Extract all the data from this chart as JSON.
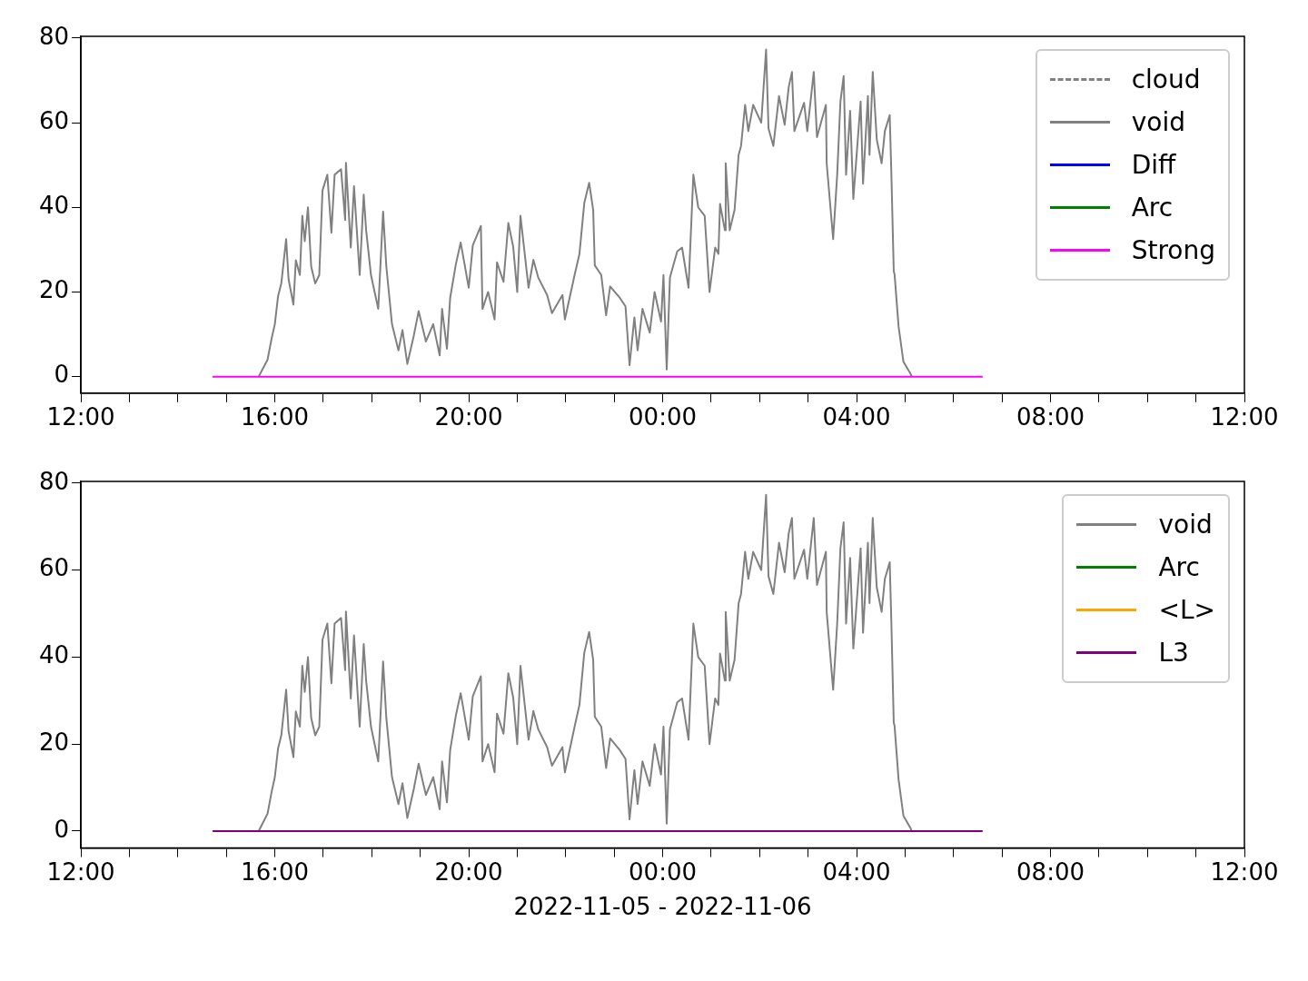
{
  "chart_data": [
    {
      "type": "line",
      "xlim": [
        "2022-11-05T12:00",
        "2022-11-06T12:00"
      ],
      "xticks": [
        {
          "value": "2022-11-05T12:00",
          "label": "12:00"
        },
        {
          "value": "2022-11-05T13:00",
          "label": null
        },
        {
          "value": "2022-11-05T14:00",
          "label": null
        },
        {
          "value": "2022-11-05T15:00",
          "label": null
        },
        {
          "value": "2022-11-05T16:00",
          "label": "16:00"
        },
        {
          "value": "2022-11-05T17:00",
          "label": null
        },
        {
          "value": "2022-11-05T18:00",
          "label": null
        },
        {
          "value": "2022-11-05T19:00",
          "label": null
        },
        {
          "value": "2022-11-05T20:00",
          "label": "20:00"
        },
        {
          "value": "2022-11-05T21:00",
          "label": null
        },
        {
          "value": "2022-11-05T22:00",
          "label": null
        },
        {
          "value": "2022-11-05T23:00",
          "label": null
        },
        {
          "value": "2022-11-06T00:00",
          "label": "00:00"
        },
        {
          "value": "2022-11-06T01:00",
          "label": null
        },
        {
          "value": "2022-11-06T02:00",
          "label": null
        },
        {
          "value": "2022-11-06T03:00",
          "label": null
        },
        {
          "value": "2022-11-06T04:00",
          "label": "04:00"
        },
        {
          "value": "2022-11-06T05:00",
          "label": null
        },
        {
          "value": "2022-11-06T06:00",
          "label": null
        },
        {
          "value": "2022-11-06T07:00",
          "label": null
        },
        {
          "value": "2022-11-06T08:00",
          "label": "08:00"
        },
        {
          "value": "2022-11-06T09:00",
          "label": null
        },
        {
          "value": "2022-11-06T10:00",
          "label": null
        },
        {
          "value": "2022-11-06T11:00",
          "label": null
        },
        {
          "value": "2022-11-06T12:00",
          "label": "12:00"
        }
      ],
      "ylim": [
        -3.9,
        80.4
      ],
      "yticks": [
        0,
        20,
        40,
        60,
        80
      ],
      "legend": "top right",
      "series": [
        {
          "name": "cloud",
          "color": "#808080",
          "line_style": "dashed"
        },
        {
          "name": "void",
          "color": "#808080",
          "x": [
            "2022-11-05T15:40",
            "2022-11-05T15:51",
            "2022-11-05T15:56",
            "2022-11-05T16:00",
            "2022-11-05T16:04",
            "2022-11-05T16:08",
            "2022-11-05T16:14",
            "2022-11-05T16:17",
            "2022-11-05T16:23",
            "2022-11-05T16:26",
            "2022-11-05T16:31",
            "2022-11-05T16:34",
            "2022-11-05T16:37",
            "2022-11-05T16:41",
            "2022-11-05T16:45",
            "2022-11-05T16:50",
            "2022-11-05T16:55",
            "2022-11-05T16:59",
            "2022-11-05T17:05",
            "2022-11-05T17:10",
            "2022-11-05T17:14",
            "2022-11-05T17:22",
            "2022-11-05T17:27",
            "2022-11-05T17:28",
            "2022-11-05T17:34",
            "2022-11-05T17:38",
            "2022-11-05T17:45",
            "2022-11-05T17:50",
            "2022-11-05T17:53",
            "2022-11-05T17:59",
            "2022-11-05T18:08",
            "2022-11-05T18:14",
            "2022-11-05T18:18",
            "2022-11-05T18:25",
            "2022-11-05T18:33",
            "2022-11-05T18:38",
            "2022-11-05T18:44",
            "2022-11-05T18:52",
            "2022-11-05T18:58",
            "2022-11-05T19:07",
            "2022-11-05T19:16",
            "2022-11-05T19:24",
            "2022-11-05T19:27",
            "2022-11-05T19:33",
            "2022-11-05T19:37",
            "2022-11-05T19:44",
            "2022-11-05T19:50",
            "2022-11-05T20:00",
            "2022-11-05T20:05",
            "2022-11-05T20:15",
            "2022-11-05T20:17",
            "2022-11-05T20:24",
            "2022-11-05T20:32",
            "2022-11-05T20:35",
            "2022-11-05T20:43",
            "2022-11-05T20:49",
            "2022-11-05T20:55",
            "2022-11-05T21:00",
            "2022-11-05T21:04",
            "2022-11-05T21:14",
            "2022-11-05T21:20",
            "2022-11-05T21:26",
            "2022-11-05T21:37",
            "2022-11-05T21:43",
            "2022-11-05T21:56",
            "2022-11-05T21:59",
            "2022-11-05T22:11",
            "2022-11-05T22:17",
            "2022-11-05T22:23",
            "2022-11-05T22:29",
            "2022-11-05T22:34",
            "2022-11-05T22:36",
            "2022-11-05T22:44",
            "2022-11-05T22:50",
            "2022-11-05T22:55",
            "2022-11-05T23:07",
            "2022-11-05T23:14",
            "2022-11-05T23:19",
            "2022-11-05T23:25",
            "2022-11-05T23:29",
            "2022-11-05T23:35",
            "2022-11-05T23:44",
            "2022-11-05T23:50",
            "2022-11-05T23:58",
            "2022-11-06T00:01",
            "2022-11-06T00:05",
            "2022-11-06T00:09",
            "2022-11-06T00:18",
            "2022-11-06T00:24",
            "2022-11-06T00:32",
            "2022-11-06T00:38",
            "2022-11-06T00:44",
            "2022-11-06T00:52",
            "2022-11-06T00:58",
            "2022-11-06T01:05",
            "2022-11-06T01:09",
            "2022-11-06T01:11",
            "2022-11-06T01:17",
            "2022-11-06T01:18",
            "2022-11-06T01:23",
            "2022-11-06T01:29",
            "2022-11-06T01:34",
            "2022-11-06T01:37",
            "2022-11-06T01:42",
            "2022-11-06T01:46",
            "2022-11-06T01:52",
            "2022-11-06T02:02",
            "2022-11-06T02:08",
            "2022-11-06T02:11",
            "2022-11-06T02:17",
            "2022-11-06T02:24",
            "2022-11-06T02:31",
            "2022-11-06T02:36",
            "2022-11-06T02:40",
            "2022-11-06T02:43",
            "2022-11-06T02:55",
            "2022-11-06T02:59",
            "2022-11-06T03:07",
            "2022-11-06T03:11",
            "2022-11-06T03:22",
            "2022-11-06T03:23",
            "2022-11-06T03:31",
            "2022-11-06T03:36",
            "2022-11-06T03:40",
            "2022-11-06T03:44",
            "2022-11-06T03:47",
            "2022-11-06T03:52",
            "2022-11-06T03:56",
            "2022-11-06T04:05",
            "2022-11-06T04:08",
            "2022-11-06T04:14",
            "2022-11-06T04:16",
            "2022-11-06T04:20",
            "2022-11-06T04:25",
            "2022-11-06T04:31",
            "2022-11-06T04:35",
            "2022-11-06T04:41",
            "2022-11-06T04:43",
            "2022-11-06T04:46",
            "2022-11-06T04:47",
            "2022-11-06T04:52",
            "2022-11-06T04:58",
            "2022-11-06T05:07",
            "2022-11-06T05:08"
          ],
          "values": [
            0,
            4,
            9,
            12.4,
            19,
            22,
            32.5,
            23,
            17,
            27.5,
            24,
            38,
            32,
            40,
            26,
            22,
            24,
            44,
            47.7,
            34,
            47.7,
            49,
            37,
            50.5,
            30.5,
            45,
            24,
            43,
            34.6,
            24,
            16,
            39,
            26,
            12.4,
            6.2,
            11,
            3,
            9.7,
            15.5,
            8.3,
            12.4,
            5,
            16,
            6.6,
            18.6,
            26.5,
            31.7,
            21,
            31,
            35.6,
            16,
            20,
            13.5,
            27,
            22.4,
            36.3,
            30.7,
            20,
            38,
            21,
            27.6,
            23.4,
            19.3,
            15,
            19.3,
            13.5,
            24,
            29,
            41,
            45.8,
            39.4,
            26.3,
            24,
            14.5,
            21.3,
            18.6,
            16.6,
            2.7,
            14,
            6.2,
            16,
            10.4,
            20,
            13,
            24,
            1.7,
            23.4,
            29.6,
            30.5,
            21,
            47.7,
            40,
            38,
            20,
            30.5,
            29,
            40.8,
            34.6,
            50.4,
            34.6,
            39.4,
            52.4,
            54.5,
            64.2,
            58,
            64.2,
            60,
            77.3,
            58.6,
            54.5,
            66.3,
            59.5,
            68.4,
            72,
            58,
            64.7,
            58,
            72,
            56.6,
            64.2,
            50.4,
            32.5,
            47.7,
            65,
            71,
            47.7,
            62.8,
            42,
            65,
            45.6,
            66.3,
            52.4,
            72,
            56,
            50.4,
            58,
            61.8,
            48.3,
            24.9,
            24.2,
            11.8,
            3.5,
            0.6,
            0
          ]
        },
        {
          "name": "Diff",
          "color": "#0000ff"
        },
        {
          "name": "Arc",
          "color": "#008000"
        },
        {
          "name": "Strong",
          "color": "#ff00ff",
          "x": [
            "2022-11-05T14:43",
            "2022-11-06T06:36"
          ],
          "values": [
            0,
            0
          ]
        }
      ]
    },
    {
      "type": "line",
      "xlabel": "2022-11-05 - 2022-11-06",
      "xlim": [
        "2022-11-05T12:00",
        "2022-11-06T12:00"
      ],
      "xticks": [
        {
          "value": "2022-11-05T12:00",
          "label": "12:00"
        },
        {
          "value": "2022-11-05T13:00",
          "label": null
        },
        {
          "value": "2022-11-05T14:00",
          "label": null
        },
        {
          "value": "2022-11-05T15:00",
          "label": null
        },
        {
          "value": "2022-11-05T16:00",
          "label": "16:00"
        },
        {
          "value": "2022-11-05T17:00",
          "label": null
        },
        {
          "value": "2022-11-05T18:00",
          "label": null
        },
        {
          "value": "2022-11-05T19:00",
          "label": null
        },
        {
          "value": "2022-11-05T20:00",
          "label": "20:00"
        },
        {
          "value": "2022-11-05T21:00",
          "label": null
        },
        {
          "value": "2022-11-05T22:00",
          "label": null
        },
        {
          "value": "2022-11-05T23:00",
          "label": null
        },
        {
          "value": "2022-11-06T00:00",
          "label": "00:00"
        },
        {
          "value": "2022-11-06T01:00",
          "label": null
        },
        {
          "value": "2022-11-06T02:00",
          "label": null
        },
        {
          "value": "2022-11-06T03:00",
          "label": null
        },
        {
          "value": "2022-11-06T04:00",
          "label": "04:00"
        },
        {
          "value": "2022-11-06T05:00",
          "label": null
        },
        {
          "value": "2022-11-06T06:00",
          "label": null
        },
        {
          "value": "2022-11-06T07:00",
          "label": null
        },
        {
          "value": "2022-11-06T08:00",
          "label": "08:00"
        },
        {
          "value": "2022-11-06T09:00",
          "label": null
        },
        {
          "value": "2022-11-06T10:00",
          "label": null
        },
        {
          "value": "2022-11-06T11:00",
          "label": null
        },
        {
          "value": "2022-11-06T12:00",
          "label": "12:00"
        }
      ],
      "ylim": [
        -3.9,
        80.4
      ],
      "yticks": [
        0,
        20,
        40,
        60,
        80
      ],
      "legend": "top right",
      "series": [
        {
          "name": "void",
          "color": "#808080",
          "x": [
            "2022-11-05T15:40",
            "2022-11-05T15:51",
            "2022-11-05T15:56",
            "2022-11-05T16:00",
            "2022-11-05T16:04",
            "2022-11-05T16:08",
            "2022-11-05T16:14",
            "2022-11-05T16:17",
            "2022-11-05T16:23",
            "2022-11-05T16:26",
            "2022-11-05T16:31",
            "2022-11-05T16:34",
            "2022-11-05T16:37",
            "2022-11-05T16:41",
            "2022-11-05T16:45",
            "2022-11-05T16:50",
            "2022-11-05T16:55",
            "2022-11-05T16:59",
            "2022-11-05T17:05",
            "2022-11-05T17:10",
            "2022-11-05T17:14",
            "2022-11-05T17:22",
            "2022-11-05T17:27",
            "2022-11-05T17:28",
            "2022-11-05T17:34",
            "2022-11-05T17:38",
            "2022-11-05T17:45",
            "2022-11-05T17:50",
            "2022-11-05T17:53",
            "2022-11-05T17:59",
            "2022-11-05T18:08",
            "2022-11-05T18:14",
            "2022-11-05T18:18",
            "2022-11-05T18:25",
            "2022-11-05T18:33",
            "2022-11-05T18:38",
            "2022-11-05T18:44",
            "2022-11-05T18:52",
            "2022-11-05T18:58",
            "2022-11-05T19:07",
            "2022-11-05T19:16",
            "2022-11-05T19:24",
            "2022-11-05T19:27",
            "2022-11-05T19:33",
            "2022-11-05T19:37",
            "2022-11-05T19:44",
            "2022-11-05T19:50",
            "2022-11-05T20:00",
            "2022-11-05T20:05",
            "2022-11-05T20:15",
            "2022-11-05T20:17",
            "2022-11-05T20:24",
            "2022-11-05T20:32",
            "2022-11-05T20:35",
            "2022-11-05T20:43",
            "2022-11-05T20:49",
            "2022-11-05T20:55",
            "2022-11-05T21:00",
            "2022-11-05T21:04",
            "2022-11-05T21:14",
            "2022-11-05T21:20",
            "2022-11-05T21:26",
            "2022-11-05T21:37",
            "2022-11-05T21:43",
            "2022-11-05T21:56",
            "2022-11-05T21:59",
            "2022-11-05T22:11",
            "2022-11-05T22:17",
            "2022-11-05T22:23",
            "2022-11-05T22:29",
            "2022-11-05T22:34",
            "2022-11-05T22:36",
            "2022-11-05T22:44",
            "2022-11-05T22:50",
            "2022-11-05T22:55",
            "2022-11-05T23:07",
            "2022-11-05T23:14",
            "2022-11-05T23:19",
            "2022-11-05T23:25",
            "2022-11-05T23:29",
            "2022-11-05T23:35",
            "2022-11-05T23:44",
            "2022-11-05T23:50",
            "2022-11-05T23:58",
            "2022-11-06T00:01",
            "2022-11-06T00:05",
            "2022-11-06T00:09",
            "2022-11-06T00:18",
            "2022-11-06T00:24",
            "2022-11-06T00:32",
            "2022-11-06T00:38",
            "2022-11-06T00:44",
            "2022-11-06T00:52",
            "2022-11-06T00:58",
            "2022-11-06T01:05",
            "2022-11-06T01:09",
            "2022-11-06T01:11",
            "2022-11-06T01:17",
            "2022-11-06T01:18",
            "2022-11-06T01:23",
            "2022-11-06T01:29",
            "2022-11-06T01:34",
            "2022-11-06T01:37",
            "2022-11-06T01:42",
            "2022-11-06T01:46",
            "2022-11-06T01:52",
            "2022-11-06T02:02",
            "2022-11-06T02:08",
            "2022-11-06T02:11",
            "2022-11-06T02:17",
            "2022-11-06T02:24",
            "2022-11-06T02:31",
            "2022-11-06T02:36",
            "2022-11-06T02:40",
            "2022-11-06T02:43",
            "2022-11-06T02:55",
            "2022-11-06T02:59",
            "2022-11-06T03:07",
            "2022-11-06T03:11",
            "2022-11-06T03:22",
            "2022-11-06T03:23",
            "2022-11-06T03:31",
            "2022-11-06T03:36",
            "2022-11-06T03:40",
            "2022-11-06T03:44",
            "2022-11-06T03:47",
            "2022-11-06T03:52",
            "2022-11-06T03:56",
            "2022-11-06T04:05",
            "2022-11-06T04:08",
            "2022-11-06T04:14",
            "2022-11-06T04:16",
            "2022-11-06T04:20",
            "2022-11-06T04:25",
            "2022-11-06T04:31",
            "2022-11-06T04:35",
            "2022-11-06T04:41",
            "2022-11-06T04:43",
            "2022-11-06T04:46",
            "2022-11-06T04:47",
            "2022-11-06T04:52",
            "2022-11-06T04:58",
            "2022-11-06T05:07",
            "2022-11-06T05:08"
          ],
          "values": [
            0,
            4,
            9,
            12.4,
            19,
            22,
            32.5,
            23,
            17,
            27.5,
            24,
            38,
            32,
            40,
            26,
            22,
            24,
            44,
            47.7,
            34,
            47.7,
            49,
            37,
            50.5,
            30.5,
            45,
            24,
            43,
            34.6,
            24,
            16,
            39,
            26,
            12.4,
            6.2,
            11,
            3,
            9.7,
            15.5,
            8.3,
            12.4,
            5,
            16,
            6.6,
            18.6,
            26.5,
            31.7,
            21,
            31,
            35.6,
            16,
            20,
            13.5,
            27,
            22.4,
            36.3,
            30.7,
            20,
            38,
            21,
            27.6,
            23.4,
            19.3,
            15,
            19.3,
            13.5,
            24,
            29,
            41,
            45.8,
            39.4,
            26.3,
            24,
            14.5,
            21.3,
            18.6,
            16.6,
            2.7,
            14,
            6.2,
            16,
            10.4,
            20,
            13,
            24,
            1.7,
            23.4,
            29.6,
            30.5,
            21,
            47.7,
            40,
            38,
            20,
            30.5,
            29,
            40.8,
            34.6,
            50.4,
            34.6,
            39.4,
            52.4,
            54.5,
            64.2,
            58,
            64.2,
            60,
            77.3,
            58.6,
            54.5,
            66.3,
            59.5,
            68.4,
            72,
            58,
            64.7,
            58,
            72,
            56.6,
            64.2,
            50.4,
            32.5,
            47.7,
            65,
            71,
            47.7,
            62.8,
            42,
            65,
            45.6,
            66.3,
            52.4,
            72,
            56,
            50.4,
            58,
            61.8,
            48.3,
            24.9,
            24.2,
            11.8,
            3.5,
            0.6,
            0
          ]
        },
        {
          "name": "Arc",
          "color": "#008000"
        },
        {
          "name": "<L>",
          "color": "#ffa500"
        },
        {
          "name": "L3",
          "color": "#800080",
          "x": [
            "2022-11-05T14:43",
            "2022-11-06T06:36"
          ],
          "values": [
            0,
            0
          ]
        }
      ]
    }
  ]
}
